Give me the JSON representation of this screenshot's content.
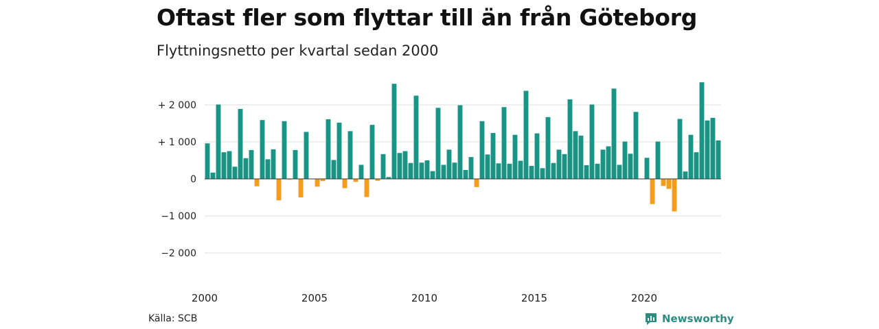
{
  "header": {
    "title": "Oftast fler som flyttar till än från Göteborg",
    "subtitle": "Flyttningsnetto per kvartal sedan 2000"
  },
  "footer": {
    "source": "Källa: SCB",
    "brand": "Newsworthy",
    "brand_icon": "bar-chart-logo-icon"
  },
  "colors": {
    "positive": "#1a9485",
    "negative": "#f39c1d",
    "grid": "#dddddd",
    "zero_line": "#333333",
    "brand": "#2a8c82"
  },
  "chart_data": {
    "type": "bar",
    "title": "Oftast fler som flyttar till än från Göteborg",
    "subtitle": "Flyttningsnetto per kvartal sedan 2000",
    "ylim": [
      -2500,
      2800
    ],
    "y_ticks": [
      2000,
      1000,
      0,
      -1000,
      -2000
    ],
    "y_tick_labels": [
      "+ 2 000",
      "+ 1 000",
      "0",
      "−1 000",
      "−2 000"
    ],
    "x_ticks": [
      2000,
      2005,
      2010,
      2015,
      2020
    ],
    "x_tick_labels": [
      "2000",
      "2005",
      "2010",
      "2015",
      "2020"
    ],
    "grid": true,
    "start_year": 2000,
    "values": [
      960,
      170,
      2010,
      720,
      750,
      330,
      1890,
      560,
      780,
      -200,
      1590,
      530,
      800,
      -580,
      1560,
      -20,
      780,
      -500,
      1270,
      0,
      -210,
      -60,
      1610,
      510,
      1520,
      -250,
      1290,
      -80,
      380,
      -490,
      1460,
      -50,
      670,
      50,
      2570,
      700,
      750,
      430,
      2250,
      440,
      500,
      210,
      1920,
      380,
      790,
      440,
      1990,
      240,
      590,
      -220,
      1560,
      660,
      1240,
      420,
      1940,
      410,
      1190,
      490,
      2380,
      350,
      1230,
      290,
      1670,
      430,
      790,
      670,
      2150,
      1290,
      1170,
      370,
      2010,
      410,
      790,
      880,
      2440,
      380,
      1010,
      680,
      1810,
      0,
      570,
      -680,
      1010,
      -190,
      -270,
      -880,
      1620,
      200,
      1190,
      720,
      2610,
      1580,
      1650,
      1040
    ]
  }
}
